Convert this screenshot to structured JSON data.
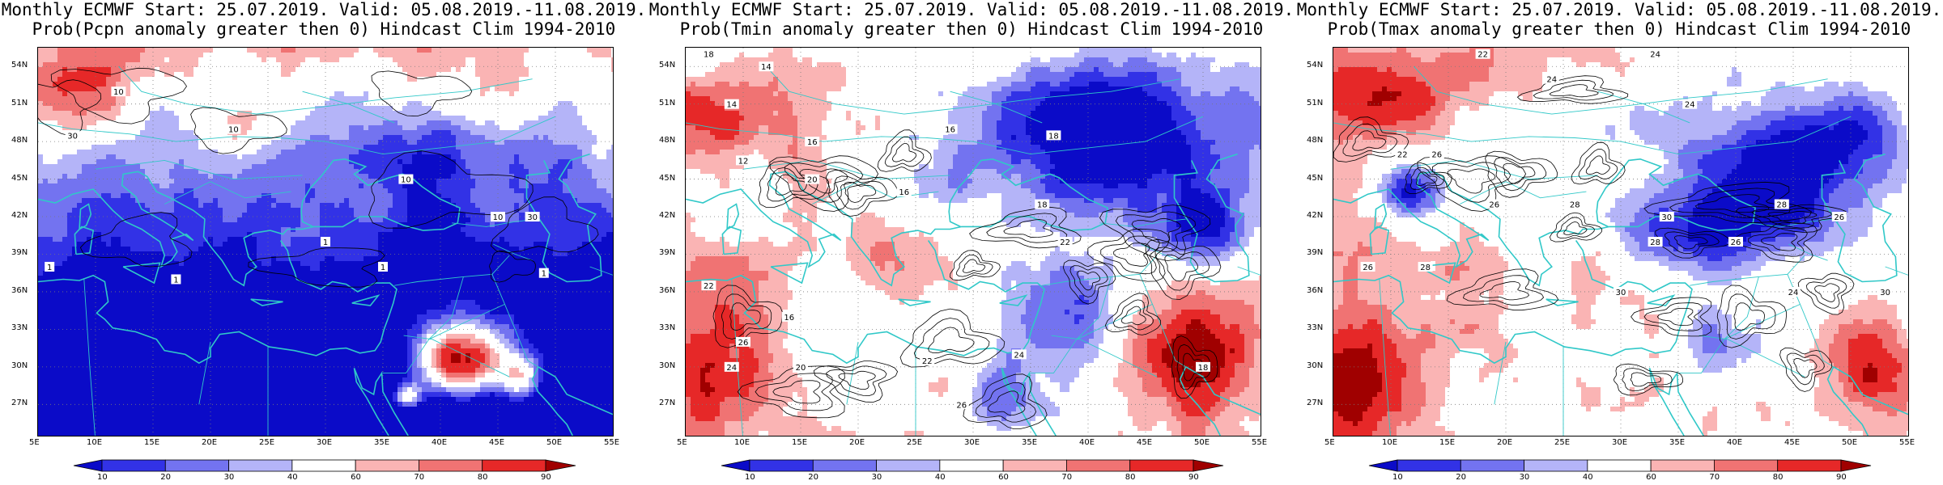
{
  "colors": {
    "p10": "#0b0bc8",
    "p20": "#3232e6",
    "p30": "#7373f0",
    "p40": "#b4b4f8",
    "p50": "#ffffff",
    "p60": "#fab4b4",
    "p70": "#f07373",
    "p80": "#e62828",
    "p90": "#a00000",
    "coast": "#30c8c8",
    "contour": "#000000"
  },
  "colorbar": {
    "labels": [
      "10",
      "20",
      "30",
      "40",
      "60",
      "70",
      "80",
      "90"
    ]
  },
  "axes": {
    "lon_ticks": [
      "5E",
      "10E",
      "15E",
      "20E",
      "25E",
      "30E",
      "35E",
      "40E",
      "45E",
      "50E",
      "55E"
    ],
    "lat_ticks": [
      "54N",
      "51N",
      "48N",
      "45N",
      "42N",
      "39N",
      "36N",
      "33N",
      "30N",
      "27N"
    ]
  },
  "panels": [
    {
      "title_line1": "Monthly ECMWF Start: 25.07.2019. Valid: 05.08.2019.-11.08.2019.",
      "title_line2": "Prob(Pcpn anomaly greater then 0) Hindcast Clim 1994-2010",
      "variable": "pcpn",
      "contour_labels": [
        "10",
        "30",
        "10",
        "10",
        "1",
        "10",
        "30",
        "1",
        "1",
        "1",
        "1"
      ]
    },
    {
      "title_line1": "Monthly ECMWF Start: 25.07.2019. Valid: 05.08.2019.-11.08.2019.",
      "title_line2": "Prob(Tmin anomaly greater then 0) Hindcast Clim 1994-2010",
      "variable": "tmin",
      "contour_labels": [
        "14",
        "18",
        "14",
        "16",
        "18",
        "12",
        "16",
        "20",
        "16",
        "18",
        "22",
        "16",
        "24",
        "20",
        "26",
        "22",
        "24",
        "22",
        "18",
        "26"
      ]
    },
    {
      "title_line1": "Monthly ECMWF Start: 25.07.2019. Valid: 05.08.2019.-11.08.2019.",
      "title_line2": "Prob(Tmax anomaly greater then 0) Hindcast Clim 1994-2010",
      "variable": "tmax",
      "contour_labels": [
        "22",
        "24",
        "24",
        "24",
        "26",
        "22",
        "26",
        "28",
        "30",
        "26",
        "28",
        "26",
        "28",
        "30",
        "24",
        "30",
        "26",
        "28"
      ]
    }
  ]
}
